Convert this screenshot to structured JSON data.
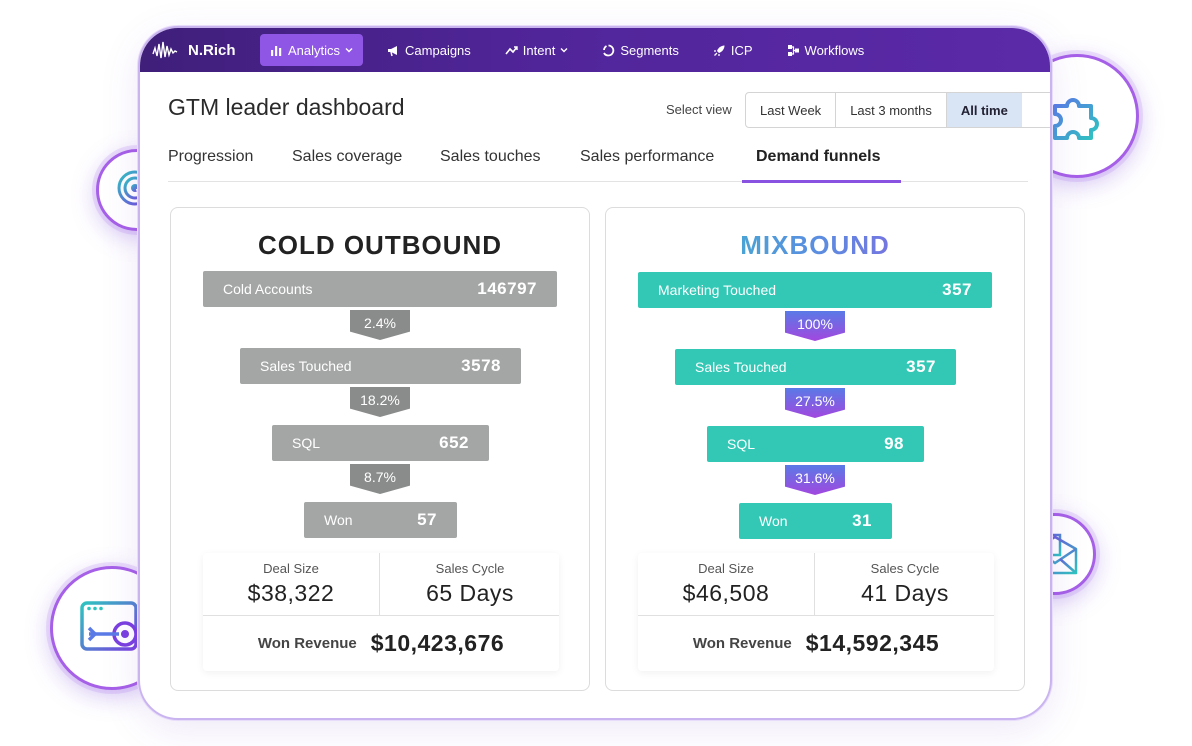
{
  "nav": {
    "brand": "N.Rich",
    "items": [
      {
        "label": "Analytics",
        "icon": "bar-chart-icon",
        "active": true,
        "dropdown": true
      },
      {
        "label": "Campaigns",
        "icon": "megaphone-icon",
        "active": false,
        "dropdown": false
      },
      {
        "label": "Intent",
        "icon": "trend-icon",
        "active": false,
        "dropdown": true
      },
      {
        "label": "Segments",
        "icon": "segments-icon",
        "active": false,
        "dropdown": false
      },
      {
        "label": "ICP",
        "icon": "rocket-icon",
        "active": false,
        "dropdown": false
      },
      {
        "label": "Workflows",
        "icon": "workflow-icon",
        "active": false,
        "dropdown": false
      }
    ]
  },
  "header": {
    "title": "GTM leader dashboard",
    "select_view_label": "Select view",
    "views": [
      "Last Week",
      "Last 3 months",
      "All time"
    ],
    "selected_view": "All time"
  },
  "tabs": [
    "Progression",
    "Sales coverage",
    "Sales touches",
    "Sales performance",
    "Demand funnels"
  ],
  "active_tab": "Demand funnels",
  "funnels": [
    {
      "title": "COLD OUTBOUND",
      "stages": [
        {
          "label": "Cold Accounts",
          "value": "146797"
        },
        {
          "label": "Sales Touched",
          "value": "3578"
        },
        {
          "label": "SQL",
          "value": "652"
        },
        {
          "label": "Won",
          "value": "57"
        }
      ],
      "rates": [
        "2.4%",
        "18.2%",
        "8.7%"
      ],
      "deal_size_label": "Deal Size",
      "deal_size": "$38,322",
      "sales_cycle_label": "Sales Cycle",
      "sales_cycle": "65 Days",
      "won_revenue_label": "Won Revenue",
      "won_revenue": "$10,423,676"
    },
    {
      "title": "MIXBOUND",
      "stages": [
        {
          "label": "Marketing Touched",
          "value": "357"
        },
        {
          "label": "Sales Touched",
          "value": "357"
        },
        {
          "label": "SQL",
          "value": "98"
        },
        {
          "label": "Won",
          "value": "31"
        }
      ],
      "rates": [
        "100%",
        "27.5%",
        "31.6%"
      ],
      "deal_size_label": "Deal Size",
      "deal_size": "$46,508",
      "sales_cycle_label": "Sales Cycle",
      "sales_cycle": "41 Days",
      "won_revenue_label": "Won Revenue",
      "won_revenue": "$14,592,345"
    }
  ],
  "badges": [
    "target-click-icon",
    "puzzle-icon",
    "browser-target-icon",
    "email-icon"
  ],
  "colors": {
    "nav_bg": "#4a2290",
    "nav_active": "#8f56e6",
    "cold_stage": "#a4a6a5",
    "cold_rate": "#8a8c8b",
    "mix_stage": "#33c8b5",
    "mix_rate_from": "#5a7ae6",
    "mix_rate_to": "#a247df",
    "accent_purple": "#8a52e0"
  }
}
